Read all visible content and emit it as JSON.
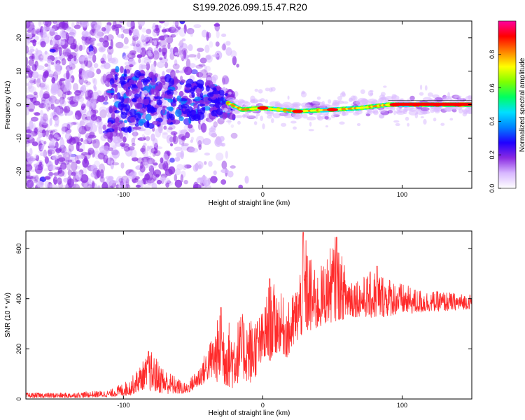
{
  "figure_title": "S199.2026.099.15.47.R20",
  "chart_data": [
    {
      "type": "heatmap",
      "title": "S199.2026.099.15.47.R20",
      "xlabel": "Height of straight line (km)",
      "ylabel": "Frequency (Hz)",
      "xlim": [
        -170,
        150
      ],
      "ylim": [
        -25,
        25
      ],
      "x_ticks": [
        -100,
        0,
        100
      ],
      "x_tick_labels": [
        "-100",
        "0",
        "100"
      ],
      "y_ticks": [
        -20,
        -10,
        0,
        10,
        20
      ],
      "y_tick_labels": [
        "-20",
        "-10",
        "0",
        "10",
        "20"
      ],
      "colorbar": {
        "label": "Normalized spectral amplitude",
        "range": [
          0,
          1
        ],
        "ticks": [
          0,
          0.2,
          0.4,
          0.6,
          0.8
        ],
        "tick_labels": [
          "0.0",
          "0.2",
          "0.4",
          "0.6",
          "0.8"
        ],
        "colors": [
          "#ffffff",
          "#d8b8ff",
          "#8a2be2",
          "#2000ff",
          "#0080ff",
          "#00e0ff",
          "#00ff60",
          "#80ff00",
          "#ffff00",
          "#ff8000",
          "#ff0000",
          "#ff00a0"
        ]
      },
      "ridge": {
        "description_points": [
          [
            -100,
            1.5
          ],
          [
            -60,
            1.0
          ],
          [
            -40,
            1.5
          ],
          [
            -25,
            0.5
          ],
          [
            -15,
            -1.5
          ],
          [
            0,
            -1.0
          ],
          [
            25,
            -2.0
          ],
          [
            50,
            -1.5
          ],
          [
            70,
            -1.0
          ],
          [
            90,
            0.0
          ],
          [
            110,
            0.0
          ],
          [
            150,
            0.0
          ]
        ],
        "strong_segments": [
          [
            0,
            -1.0
          ],
          [
            25,
            -2.0
          ],
          [
            50,
            -1.5
          ],
          [
            95,
            0.0
          ],
          [
            110,
            0.0
          ],
          [
            125,
            0.0
          ],
          [
            140,
            0.0
          ]
        ]
      }
    },
    {
      "type": "line",
      "xlabel": "Height of straight line (km)",
      "ylabel": "SNR (10 * v/v)",
      "xlim": [
        -170,
        150
      ],
      "ylim": [
        0,
        670
      ],
      "x_ticks": [
        -100,
        0,
        100
      ],
      "x_tick_labels": [
        "-100",
        "0",
        "100"
      ],
      "y_ticks": [
        0,
        200,
        400,
        600
      ],
      "y_tick_labels": [
        "0",
        "200",
        "400",
        "600"
      ],
      "color": "#ff2a2a",
      "envelope": {
        "x": [
          -170,
          -140,
          -110,
          -95,
          -85,
          -80,
          -70,
          -55,
          -45,
          -38,
          -30,
          -22,
          -15,
          -8,
          0,
          5,
          12,
          18,
          25,
          30,
          38,
          45,
          52,
          60,
          70,
          80,
          90,
          100,
          110,
          120,
          130,
          140,
          150
        ],
        "min": [
          5,
          5,
          8,
          15,
          40,
          30,
          20,
          20,
          50,
          80,
          60,
          40,
          80,
          60,
          140,
          150,
          190,
          160,
          230,
          260,
          270,
          300,
          310,
          320,
          330,
          320,
          330,
          340,
          340,
          350,
          350,
          355,
          360
        ],
        "max": [
          25,
          25,
          35,
          80,
          160,
          190,
          120,
          60,
          140,
          230,
          360,
          300,
          340,
          330,
          350,
          480,
          430,
          380,
          470,
          665,
          500,
          560,
          650,
          520,
          480,
          520,
          490,
          460,
          440,
          430,
          430,
          420,
          420
        ],
        "peaks": [
          [
            -82,
            190
          ],
          [
            -30,
            365
          ],
          [
            5,
            480
          ],
          [
            29,
            665
          ],
          [
            53,
            645
          ],
          [
            82,
            530
          ]
        ]
      }
    }
  ]
}
